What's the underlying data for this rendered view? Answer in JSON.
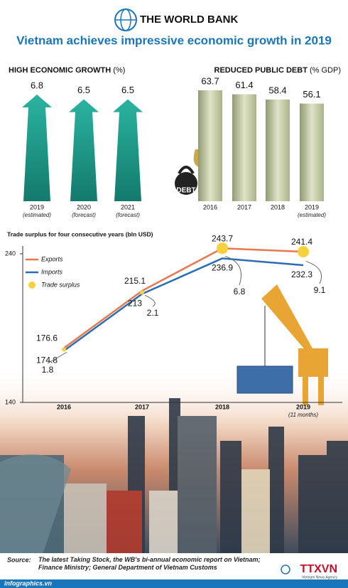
{
  "header": {
    "logo_text": "THE WORLD BANK",
    "title": "Vietnam achieves impressive economic growth in 2019"
  },
  "chart_data": [
    {
      "type": "arrow",
      "title": "HIGH ECONOMIC GROWTH",
      "title_unit": "(%)",
      "categories": [
        "2019",
        "2020",
        "2021"
      ],
      "category_notes": [
        "(estimated)",
        "(forecast)",
        "(forecast)"
      ],
      "values": [
        6.8,
        6.5,
        6.5
      ],
      "color": "#1f9a8a"
    },
    {
      "type": "bar",
      "title": "REDUCED PUBLIC DEBT",
      "title_unit": "(% GDP)",
      "categories": [
        "2016",
        "2017",
        "2018",
        "2019"
      ],
      "category_notes": [
        null,
        null,
        null,
        "(estimated)"
      ],
      "values": [
        63.7,
        61.4,
        58.4,
        56.1
      ],
      "color": "#b5bf8f",
      "icon_label": "DEBT"
    },
    {
      "type": "line",
      "title": "Trade surplus for four consecutive years (bln USD)",
      "categories": [
        "2016",
        "2017",
        "2018",
        "2019"
      ],
      "category_notes": [
        null,
        null,
        null,
        "(11 months)"
      ],
      "ylim": [
        140,
        245
      ],
      "yticks": [
        140,
        240
      ],
      "series": [
        {
          "name": "Exports",
          "color": "#e8784d",
          "values": [
            176.6,
            215.1,
            243.7,
            241.4
          ]
        },
        {
          "name": "Imports",
          "color": "#2a6db5",
          "values": [
            174.8,
            213,
            236.9,
            232.3
          ]
        },
        {
          "name": "Trade surplus",
          "color": "#f7d13c",
          "style": "dot",
          "values": [
            1.8,
            2.1,
            6.8,
            9.1
          ]
        }
      ]
    }
  ],
  "footer": {
    "source_label": "Source:",
    "source": "The latest Taking Stock, the WB's bi-annual economic report on Vietnam; Finance Ministry; General Department of Vietnam Customs",
    "site": "infographics.vn",
    "agency": "TTXVN",
    "agency_sub": "Vietnam News Agency"
  }
}
